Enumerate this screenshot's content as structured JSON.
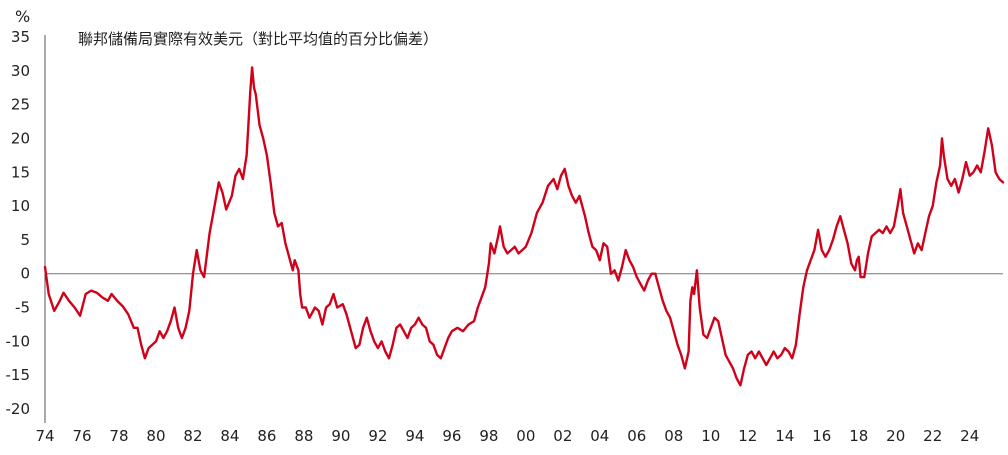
{
  "chart_data": {
    "type": "line",
    "title": "聯邦儲備局實際有效美元（對比平均值的百分比偏差）",
    "ylabel": "%",
    "xlabel": "",
    "ylim": [
      -20,
      35
    ],
    "xlim": [
      1974,
      2025.8
    ],
    "yticks": [
      35,
      30,
      25,
      20,
      15,
      10,
      5,
      0,
      -5,
      -10,
      -15,
      -20
    ],
    "xticks": [
      {
        "year": 1974,
        "label": "74"
      },
      {
        "year": 1976,
        "label": "76"
      },
      {
        "year": 1978,
        "label": "78"
      },
      {
        "year": 1980,
        "label": "80"
      },
      {
        "year": 1982,
        "label": "82"
      },
      {
        "year": 1984,
        "label": "84"
      },
      {
        "year": 1986,
        "label": "86"
      },
      {
        "year": 1988,
        "label": "88"
      },
      {
        "year": 1990,
        "label": "90"
      },
      {
        "year": 1992,
        "label": "92"
      },
      {
        "year": 1994,
        "label": "94"
      },
      {
        "year": 1996,
        "label": "96"
      },
      {
        "year": 1998,
        "label": "98"
      },
      {
        "year": 2000,
        "label": "00"
      },
      {
        "year": 2002,
        "label": "02"
      },
      {
        "year": 2004,
        "label": "04"
      },
      {
        "year": 2006,
        "label": "06"
      },
      {
        "year": 2008,
        "label": "08"
      },
      {
        "year": 2010,
        "label": "10"
      },
      {
        "year": 2012,
        "label": "12"
      },
      {
        "year": 2014,
        "label": "14"
      },
      {
        "year": 2016,
        "label": "16"
      },
      {
        "year": 2018,
        "label": "18"
      },
      {
        "year": 2020,
        "label": "20"
      },
      {
        "year": 2022,
        "label": "22"
      },
      {
        "year": 2024,
        "label": "24"
      }
    ],
    "grid": false,
    "zero_line": true,
    "line_color": "#d0021b",
    "series": [
      {
        "name": "",
        "points": [
          [
            1974.0,
            1.0
          ],
          [
            1974.2,
            -3.0
          ],
          [
            1974.5,
            -5.5
          ],
          [
            1974.8,
            -4.0
          ],
          [
            1975.0,
            -2.8
          ],
          [
            1975.3,
            -4.0
          ],
          [
            1975.6,
            -5.0
          ],
          [
            1975.9,
            -6.2
          ],
          [
            1976.2,
            -3.0
          ],
          [
            1976.5,
            -2.5
          ],
          [
            1976.8,
            -2.8
          ],
          [
            1977.1,
            -3.5
          ],
          [
            1977.4,
            -4.0
          ],
          [
            1977.6,
            -3.0
          ],
          [
            1977.9,
            -4.0
          ],
          [
            1978.2,
            -4.8
          ],
          [
            1978.5,
            -6.0
          ],
          [
            1978.8,
            -8.0
          ],
          [
            1979.0,
            -8.0
          ],
          [
            1979.2,
            -10.5
          ],
          [
            1979.4,
            -12.5
          ],
          [
            1979.6,
            -11.0
          ],
          [
            1979.8,
            -10.5
          ],
          [
            1980.0,
            -10.0
          ],
          [
            1980.2,
            -8.5
          ],
          [
            1980.4,
            -9.5
          ],
          [
            1980.6,
            -8.5
          ],
          [
            1980.8,
            -7.0
          ],
          [
            1981.0,
            -5.0
          ],
          [
            1981.2,
            -8.0
          ],
          [
            1981.4,
            -9.5
          ],
          [
            1981.6,
            -8.0
          ],
          [
            1981.8,
            -5.5
          ],
          [
            1982.0,
            0.0
          ],
          [
            1982.2,
            3.5
          ],
          [
            1982.4,
            0.5
          ],
          [
            1982.6,
            -0.5
          ],
          [
            1982.9,
            6.0
          ],
          [
            1983.1,
            9.0
          ],
          [
            1983.4,
            13.5
          ],
          [
            1983.6,
            12.0
          ],
          [
            1983.8,
            9.5
          ],
          [
            1984.1,
            11.5
          ],
          [
            1984.3,
            14.5
          ],
          [
            1984.5,
            15.5
          ],
          [
            1984.7,
            14.0
          ],
          [
            1984.9,
            17.5
          ],
          [
            1985.0,
            22.0
          ],
          [
            1985.1,
            27.0
          ],
          [
            1985.2,
            30.5
          ],
          [
            1985.3,
            27.5
          ],
          [
            1985.4,
            26.5
          ],
          [
            1985.6,
            22.0
          ],
          [
            1985.8,
            20.0
          ],
          [
            1986.0,
            17.5
          ],
          [
            1986.2,
            13.5
          ],
          [
            1986.4,
            9.0
          ],
          [
            1986.6,
            7.0
          ],
          [
            1986.8,
            7.5
          ],
          [
            1987.0,
            4.5
          ],
          [
            1987.2,
            2.5
          ],
          [
            1987.4,
            0.5
          ],
          [
            1987.5,
            2.0
          ],
          [
            1987.7,
            0.5
          ],
          [
            1987.8,
            -3.0
          ],
          [
            1987.9,
            -5.0
          ],
          [
            1988.1,
            -5.0
          ],
          [
            1988.3,
            -6.5
          ],
          [
            1988.6,
            -5.0
          ],
          [
            1988.8,
            -5.5
          ],
          [
            1989.0,
            -7.5
          ],
          [
            1989.2,
            -5.0
          ],
          [
            1989.4,
            -4.5
          ],
          [
            1989.6,
            -3.0
          ],
          [
            1989.8,
            -5.0
          ],
          [
            1990.1,
            -4.5
          ],
          [
            1990.3,
            -6.0
          ],
          [
            1990.6,
            -9.0
          ],
          [
            1990.8,
            -11.0
          ],
          [
            1991.0,
            -10.5
          ],
          [
            1991.2,
            -8.0
          ],
          [
            1991.4,
            -6.5
          ],
          [
            1991.6,
            -8.5
          ],
          [
            1991.8,
            -10.0
          ],
          [
            1992.0,
            -11.0
          ],
          [
            1992.2,
            -10.0
          ],
          [
            1992.4,
            -11.5
          ],
          [
            1992.6,
            -12.5
          ],
          [
            1992.8,
            -10.5
          ],
          [
            1993.0,
            -8.0
          ],
          [
            1993.2,
            -7.5
          ],
          [
            1993.4,
            -8.5
          ],
          [
            1993.6,
            -9.5
          ],
          [
            1993.8,
            -8.0
          ],
          [
            1994.0,
            -7.5
          ],
          [
            1994.2,
            -6.5
          ],
          [
            1994.4,
            -7.5
          ],
          [
            1994.6,
            -8.0
          ],
          [
            1994.8,
            -10.0
          ],
          [
            1995.0,
            -10.5
          ],
          [
            1995.2,
            -12.0
          ],
          [
            1995.4,
            -12.5
          ],
          [
            1995.6,
            -11.0
          ],
          [
            1995.8,
            -9.5
          ],
          [
            1996.0,
            -8.5
          ],
          [
            1996.3,
            -8.0
          ],
          [
            1996.6,
            -8.5
          ],
          [
            1996.9,
            -7.5
          ],
          [
            1997.2,
            -7.0
          ],
          [
            1997.4,
            -5.0
          ],
          [
            1997.6,
            -3.5
          ],
          [
            1997.8,
            -2.0
          ],
          [
            1998.0,
            1.5
          ],
          [
            1998.1,
            4.5
          ],
          [
            1998.3,
            3.0
          ],
          [
            1998.5,
            5.5
          ],
          [
            1998.6,
            7.0
          ],
          [
            1998.8,
            4.0
          ],
          [
            1999.0,
            3.0
          ],
          [
            1999.2,
            3.5
          ],
          [
            1999.4,
            4.0
          ],
          [
            1999.6,
            3.0
          ],
          [
            1999.8,
            3.5
          ],
          [
            2000.0,
            4.0
          ],
          [
            2000.3,
            6.0
          ],
          [
            2000.6,
            9.0
          ],
          [
            2000.9,
            10.5
          ],
          [
            2001.2,
            13.0
          ],
          [
            2001.5,
            14.0
          ],
          [
            2001.7,
            12.5
          ],
          [
            2001.9,
            14.5
          ],
          [
            2002.1,
            15.5
          ],
          [
            2002.3,
            13.0
          ],
          [
            2002.5,
            11.5
          ],
          [
            2002.7,
            10.5
          ],
          [
            2002.9,
            11.5
          ],
          [
            2003.2,
            8.5
          ],
          [
            2003.4,
            6.0
          ],
          [
            2003.6,
            4.0
          ],
          [
            2003.8,
            3.5
          ],
          [
            2004.0,
            2.0
          ],
          [
            2004.2,
            4.5
          ],
          [
            2004.4,
            4.0
          ],
          [
            2004.6,
            0.0
          ],
          [
            2004.8,
            0.5
          ],
          [
            2005.0,
            -1.0
          ],
          [
            2005.2,
            1.0
          ],
          [
            2005.4,
            3.5
          ],
          [
            2005.6,
            2.0
          ],
          [
            2005.8,
            1.0
          ],
          [
            2006.0,
            -0.5
          ],
          [
            2006.2,
            -1.5
          ],
          [
            2006.4,
            -2.5
          ],
          [
            2006.6,
            -1.0
          ],
          [
            2006.8,
            0.0
          ],
          [
            2007.0,
            0.0
          ],
          [
            2007.2,
            -2.0
          ],
          [
            2007.4,
            -4.0
          ],
          [
            2007.6,
            -5.5
          ],
          [
            2007.8,
            -6.5
          ],
          [
            2008.0,
            -8.5
          ],
          [
            2008.2,
            -10.5
          ],
          [
            2008.4,
            -12.0
          ],
          [
            2008.6,
            -14.0
          ],
          [
            2008.8,
            -11.5
          ],
          [
            2008.9,
            -4.0
          ],
          [
            2009.0,
            -2.0
          ],
          [
            2009.1,
            -3.0
          ],
          [
            2009.25,
            0.5
          ],
          [
            2009.4,
            -5.0
          ],
          [
            2009.6,
            -9.0
          ],
          [
            2009.8,
            -9.5
          ],
          [
            2010.0,
            -8.0
          ],
          [
            2010.2,
            -6.5
          ],
          [
            2010.4,
            -7.0
          ],
          [
            2010.6,
            -9.5
          ],
          [
            2010.8,
            -12.0
          ],
          [
            2011.0,
            -13.0
          ],
          [
            2011.2,
            -14.0
          ],
          [
            2011.4,
            -15.5
          ],
          [
            2011.6,
            -16.5
          ],
          [
            2011.8,
            -14.0
          ],
          [
            2012.0,
            -12.0
          ],
          [
            2012.2,
            -11.5
          ],
          [
            2012.4,
            -12.5
          ],
          [
            2012.6,
            -11.5
          ],
          [
            2012.8,
            -12.5
          ],
          [
            2013.0,
            -13.5
          ],
          [
            2013.2,
            -12.5
          ],
          [
            2013.4,
            -11.5
          ],
          [
            2013.6,
            -12.5
          ],
          [
            2013.8,
            -12.0
          ],
          [
            2014.0,
            -11.0
          ],
          [
            2014.2,
            -11.5
          ],
          [
            2014.4,
            -12.5
          ],
          [
            2014.6,
            -10.5
          ],
          [
            2014.8,
            -6.0
          ],
          [
            2015.0,
            -2.0
          ],
          [
            2015.2,
            0.5
          ],
          [
            2015.4,
            2.0
          ],
          [
            2015.6,
            3.5
          ],
          [
            2015.8,
            6.5
          ],
          [
            2016.0,
            3.5
          ],
          [
            2016.2,
            2.5
          ],
          [
            2016.4,
            3.5
          ],
          [
            2016.6,
            5.0
          ],
          [
            2016.8,
            7.0
          ],
          [
            2017.0,
            8.5
          ],
          [
            2017.2,
            6.5
          ],
          [
            2017.4,
            4.5
          ],
          [
            2017.6,
            1.5
          ],
          [
            2017.8,
            0.5
          ],
          [
            2017.9,
            2.0
          ],
          [
            2018.0,
            2.5
          ],
          [
            2018.1,
            -0.5
          ],
          [
            2018.3,
            -0.5
          ],
          [
            2018.5,
            3.0
          ],
          [
            2018.7,
            5.5
          ],
          [
            2018.9,
            6.0
          ],
          [
            2019.1,
            6.5
          ],
          [
            2019.3,
            6.0
          ],
          [
            2019.5,
            7.0
          ],
          [
            2019.7,
            6.0
          ],
          [
            2019.9,
            7.0
          ],
          [
            2020.1,
            10.0
          ],
          [
            2020.25,
            12.5
          ],
          [
            2020.4,
            9.0
          ],
          [
            2020.6,
            7.0
          ],
          [
            2020.8,
            5.0
          ],
          [
            2021.0,
            3.0
          ],
          [
            2021.2,
            4.5
          ],
          [
            2021.4,
            3.5
          ],
          [
            2021.6,
            6.0
          ],
          [
            2021.8,
            8.5
          ],
          [
            2022.0,
            10.0
          ],
          [
            2022.2,
            13.5
          ],
          [
            2022.4,
            16.0
          ],
          [
            2022.5,
            20.0
          ],
          [
            2022.6,
            17.5
          ],
          [
            2022.8,
            14.0
          ],
          [
            2023.0,
            13.0
          ],
          [
            2023.2,
            14.0
          ],
          [
            2023.4,
            12.0
          ],
          [
            2023.6,
            14.0
          ],
          [
            2023.8,
            16.5
          ],
          [
            2024.0,
            14.5
          ],
          [
            2024.2,
            15.0
          ],
          [
            2024.4,
            16.0
          ],
          [
            2024.6,
            15.0
          ],
          [
            2024.8,
            18.0
          ],
          [
            2025.0,
            21.5
          ],
          [
            2025.2,
            19.0
          ],
          [
            2025.4,
            15.0
          ],
          [
            2025.6,
            14.0
          ],
          [
            2025.8,
            13.5
          ]
        ]
      }
    ]
  }
}
